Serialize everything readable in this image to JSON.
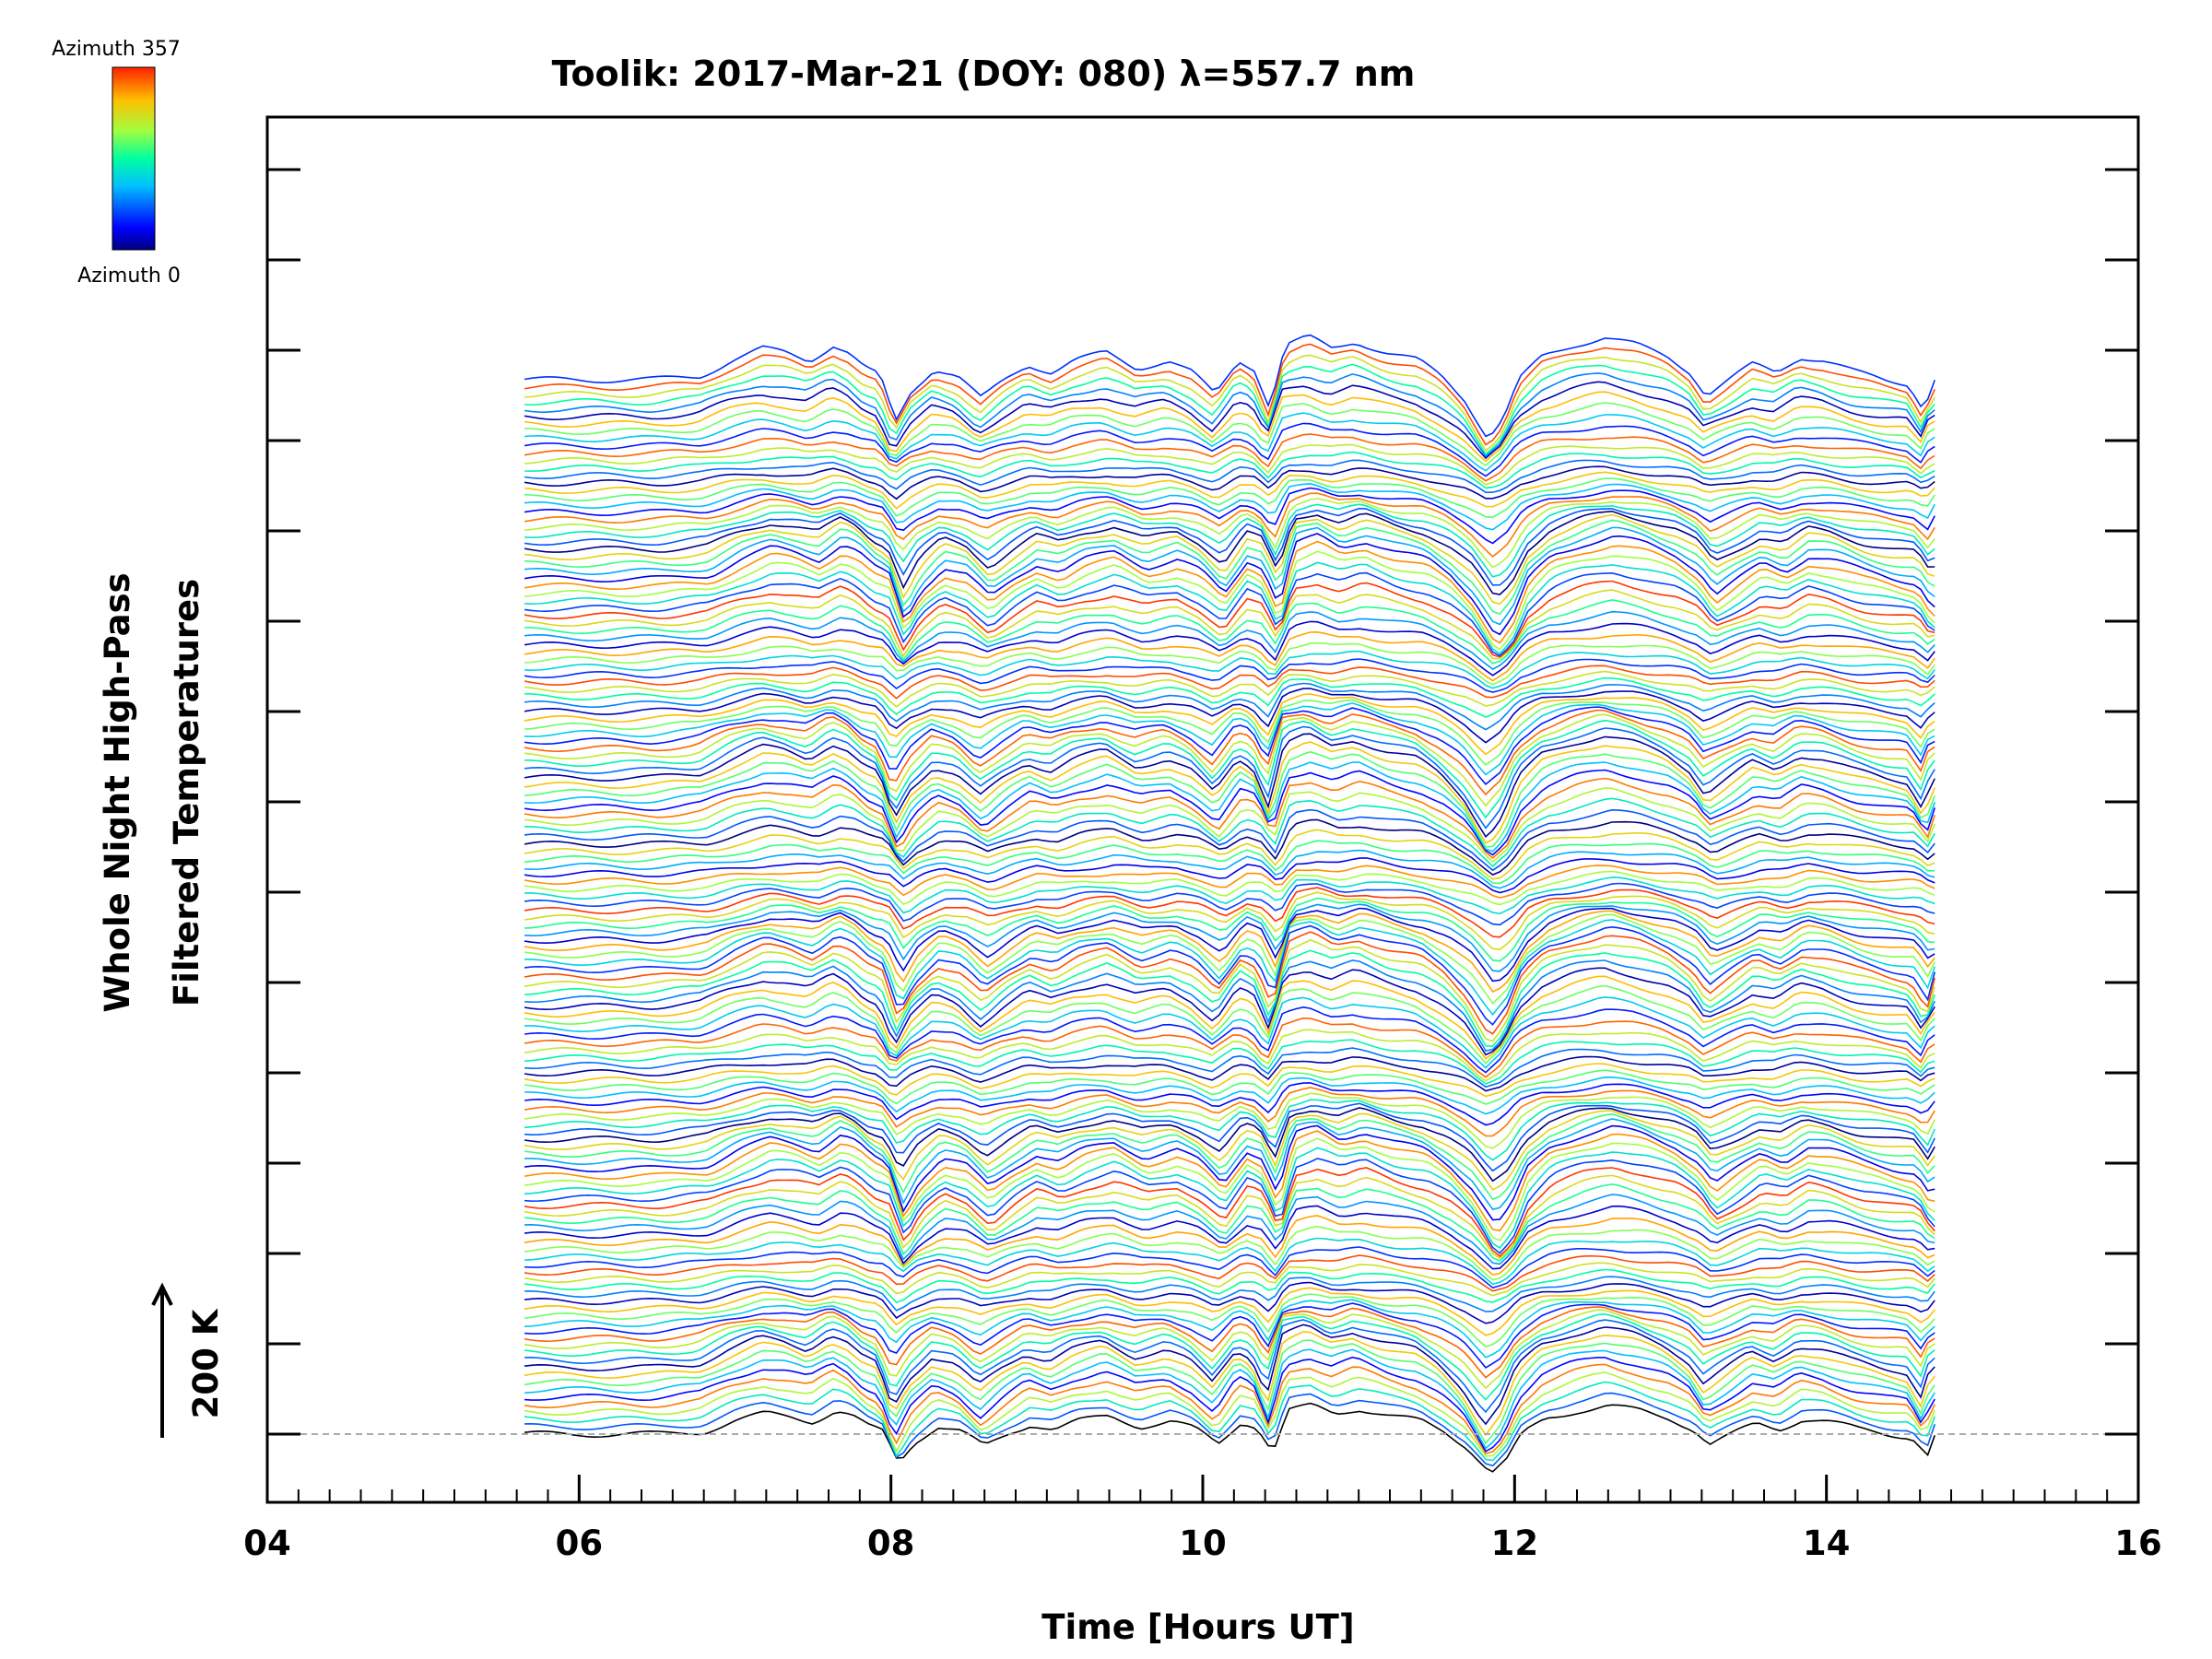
{
  "chart_data": {
    "type": "line",
    "title": "Toolik: 2017-Mar-21 (DOY: 080) λ=557.7 nm",
    "xlabel": "Time [Hours UT]",
    "ylabel_line1": "Whole Night High-Pass",
    "ylabel_line2": "Filtered Temperatures",
    "xlim": [
      4,
      16
    ],
    "x_ticks": [
      "04",
      "06",
      "08",
      "10",
      "12",
      "14",
      "16"
    ],
    "x_tick_values": [
      4,
      6,
      8,
      10,
      12,
      14,
      16
    ],
    "scale_bar_label": "200 K",
    "scale_bar_kelvin": 200,
    "colorbar": {
      "top_label": "Azimuth 357",
      "bottom_label": "Azimuth 0",
      "min": 0,
      "max": 357
    },
    "n_traces": 144,
    "x_start": 5.65,
    "x_end": 14.7,
    "trace_offset_kelvin": 20,
    "baseline_kelvin": 0,
    "profile_points": {
      "x": [
        5.65,
        6.0,
        6.5,
        6.8,
        7.0,
        7.2,
        7.35,
        7.5,
        7.65,
        7.75,
        7.85,
        7.95,
        8.05,
        8.15,
        8.3,
        8.45,
        8.6,
        8.75,
        8.9,
        9.05,
        9.2,
        9.4,
        9.6,
        9.8,
        9.95,
        10.1,
        10.25,
        10.35,
        10.45,
        10.55,
        10.7,
        10.85,
        11.0,
        11.2,
        11.4,
        11.55,
        11.7,
        11.85,
        11.95,
        12.05,
        12.2,
        12.4,
        12.6,
        12.8,
        13.0,
        13.15,
        13.25,
        13.4,
        13.55,
        13.7,
        13.85,
        14.0,
        14.2,
        14.4,
        14.55,
        14.65,
        14.7
      ],
      "y": [
        0,
        0,
        0,
        5,
        25,
        40,
        35,
        25,
        45,
        35,
        15,
        5,
        -55,
        -15,
        15,
        5,
        -25,
        0,
        20,
        10,
        25,
        35,
        15,
        25,
        10,
        -20,
        25,
        15,
        -35,
        45,
        55,
        40,
        50,
        35,
        25,
        5,
        -25,
        -75,
        -50,
        0,
        30,
        45,
        55,
        45,
        30,
        10,
        -20,
        0,
        20,
        10,
        30,
        25,
        10,
        0,
        -5,
        -40,
        0
      ]
    },
    "series_colors_by_azimuth": [
      "#000080",
      "#0000ff",
      "#00c0ff",
      "#00ffa0",
      "#a0ff40",
      "#ffc000",
      "#ff2000"
    ],
    "grid": false
  }
}
